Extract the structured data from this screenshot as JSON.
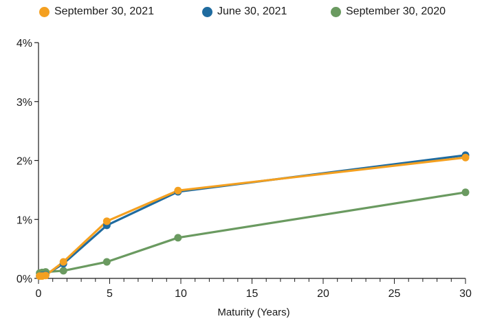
{
  "chart_data": {
    "type": "line",
    "title": "",
    "xlabel": "Maturity (Years)",
    "ylabel": "",
    "xlim": [
      0,
      30
    ],
    "ylim": [
      0,
      4
    ],
    "x_ticks": [
      "0",
      "5",
      "10",
      "15",
      "20",
      "25",
      "30"
    ],
    "x_tick_values": [
      0,
      5,
      10,
      15,
      20,
      25,
      30
    ],
    "y_ticks": [
      "0%",
      "1%",
      "2%",
      "3%",
      "4%"
    ],
    "y_tick_values": [
      0,
      1,
      2,
      3,
      4
    ],
    "grid": false,
    "legend_position": "top",
    "series": [
      {
        "name": "September 30, 2020",
        "color": "#6a9a60",
        "points": [
          [
            0.08,
            0.09
          ],
          [
            0.25,
            0.1
          ],
          [
            0.5,
            0.11
          ],
          [
            1.75,
            0.13
          ],
          [
            4.8,
            0.28
          ],
          [
            9.8,
            0.69
          ],
          [
            30,
            1.46
          ]
        ]
      },
      {
        "name": "June 30, 2021",
        "color": "#1f6b9f",
        "points": [
          [
            0.08,
            0.04
          ],
          [
            0.25,
            0.05
          ],
          [
            0.5,
            0.06
          ],
          [
            1.75,
            0.25
          ],
          [
            4.8,
            0.9
          ],
          [
            9.8,
            1.47
          ],
          [
            30,
            2.09
          ]
        ]
      },
      {
        "name": "September 30, 2021",
        "color": "#f4a020",
        "points": [
          [
            0.08,
            0.04
          ],
          [
            0.25,
            0.04
          ],
          [
            0.5,
            0.05
          ],
          [
            1.75,
            0.28
          ],
          [
            4.8,
            0.97
          ],
          [
            9.8,
            1.49
          ],
          [
            30,
            2.05
          ]
        ]
      }
    ],
    "legend": [
      {
        "name": "September 30, 2021",
        "color": "#f4a020"
      },
      {
        "name": "June 30, 2021",
        "color": "#1f6b9f"
      },
      {
        "name": "September 30, 2020",
        "color": "#6a9a60"
      }
    ]
  }
}
